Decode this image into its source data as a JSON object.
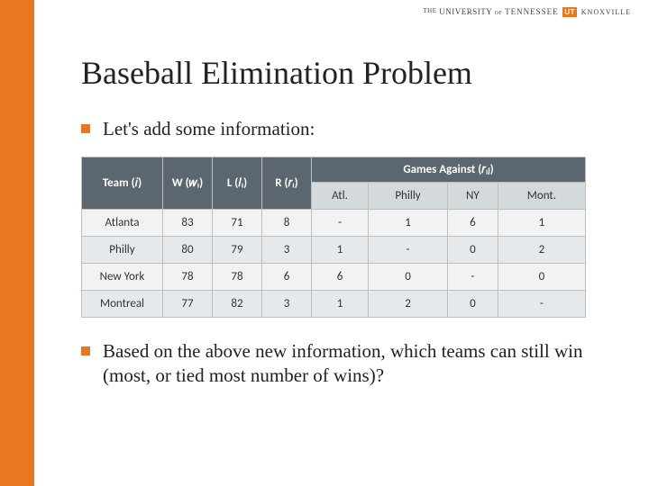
{
  "branding": {
    "the": "THE",
    "university_of": "UNIVERSITY of",
    "tennessee": "TENNESSEE",
    "ut": "UT",
    "knoxville": "KNOXVILLE"
  },
  "title": "Baseball Elimination Problem",
  "bullet1": "Let's add some information:",
  "bullet2": "Based on the above new information, which teams can still win (most, or tied most number of wins)?",
  "table": {
    "headers": {
      "team": "Team (𝑖)",
      "w": "W (𝑤ᵢ)",
      "l": "L (𝑙ᵢ)",
      "r": "R (𝑟ᵢ)",
      "games": "Games Against (𝑟ᵢⱼ)"
    },
    "sub": {
      "atl": "Atl.",
      "philly": "Philly",
      "ny": "NY",
      "mont": "Mont."
    },
    "rows": [
      {
        "team": "Atlanta",
        "w": "83",
        "l": "71",
        "r": "8",
        "atl": "-",
        "philly": "1",
        "ny": "6",
        "mont": "1"
      },
      {
        "team": "Philly",
        "w": "80",
        "l": "79",
        "r": "3",
        "atl": "1",
        "philly": "-",
        "ny": "0",
        "mont": "2"
      },
      {
        "team": "New York",
        "w": "78",
        "l": "78",
        "r": "6",
        "atl": "6",
        "philly": "0",
        "ny": "-",
        "mont": "0"
      },
      {
        "team": "Montreal",
        "w": "77",
        "l": "82",
        "r": "3",
        "atl": "1",
        "philly": "2",
        "ny": "0",
        "mont": "-"
      }
    ]
  },
  "colors": {
    "accent": "#e87722",
    "header_bg": "#5b6770",
    "row_alt1": "#f2f2f2",
    "row_alt2": "#e6e9eb"
  }
}
